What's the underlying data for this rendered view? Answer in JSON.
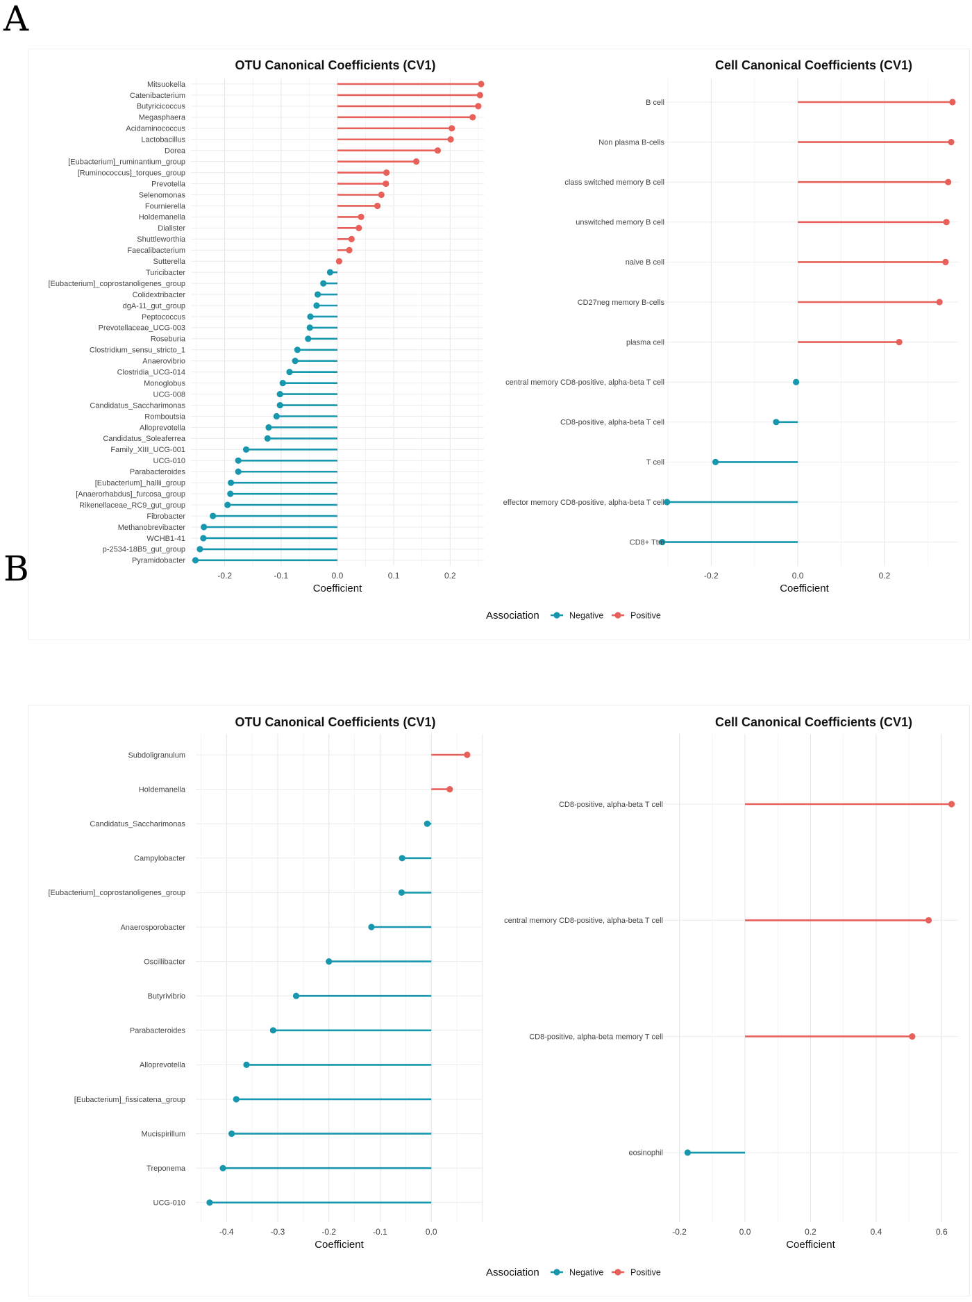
{
  "panels": [
    {
      "label": "A",
      "legend": {
        "title": "Association",
        "items": [
          {
            "label": "Negative",
            "color": "#1797AE"
          },
          {
            "label": "Positive",
            "color": "#E8605A"
          }
        ]
      },
      "charts": [
        {
          "type": "lollipop",
          "title": "OTU Canonical Coefficients (CV1)",
          "xlabel": "Coefficient",
          "xlim": [
            -0.26,
            0.26
          ],
          "xticks": [
            -0.2,
            -0.1,
            0.0,
            0.1,
            0.2
          ],
          "tick_labels": [
            "-0.2",
            "-0.1",
            "0.0",
            "0.1",
            "0.2"
          ],
          "categories": [
            "Mitsuokella",
            "Catenibacterium",
            "Butyricicoccus",
            "Megasphaera",
            "Acidaminococcus",
            "Lactobacillus",
            "Dorea",
            "[Eubacterium]_ruminantium_group",
            "[Ruminococcus]_torques_group",
            "Prevotella",
            "Selenomonas",
            "Fournierella",
            "Holdemanella",
            "Dialister",
            "Shuttleworthia",
            "Faecalibacterium",
            "Sutterella",
            "Turicibacter",
            "[Eubacterium]_coprostanoligenes_group",
            "Colidextribacter",
            "dgA-11_gut_group",
            "Peptococcus",
            "Prevotellaceae_UCG-003",
            "Roseburia",
            "Clostridium_sensu_stricto_1",
            "Anaerovibrio",
            "Clostridia_UCG-014",
            "Monoglobus",
            "UCG-008",
            "Candidatus_Saccharimonas",
            "Romboutsia",
            "Alloprevotella",
            "Candidatus_Soleaferrea",
            "Family_XIII_UCG-001",
            "UCG-010",
            "Parabacteroides",
            "[Eubacterium]_hallii_group",
            "[Anaerorhabdus]_furcosa_group",
            "Rikenellaceae_RC9_gut_group",
            "Fibrobacter",
            "Methanobrevibacter",
            "WCHB1-41",
            "p-2534-18B5_gut_group",
            "Pyramidobacter"
          ],
          "values": [
            0.255,
            0.253,
            0.25,
            0.24,
            0.203,
            0.201,
            0.178,
            0.14,
            0.087,
            0.086,
            0.078,
            0.071,
            0.042,
            0.038,
            0.025,
            0.021,
            0.003,
            -0.013,
            -0.025,
            -0.035,
            -0.037,
            -0.048,
            -0.049,
            -0.052,
            -0.071,
            -0.075,
            -0.085,
            -0.097,
            -0.102,
            -0.102,
            -0.108,
            -0.122,
            -0.124,
            -0.162,
            -0.176,
            -0.176,
            -0.189,
            -0.19,
            -0.195,
            -0.221,
            -0.237,
            -0.238,
            -0.244,
            -0.252
          ]
        },
        {
          "type": "lollipop",
          "title": "Cell Canonical Coefficients (CV1)",
          "xlabel": "Coefficient",
          "xlim": [
            -0.34,
            0.37
          ],
          "xticks": [
            -0.2,
            0.0,
            0.2
          ],
          "tick_labels": [
            "-0.2",
            "0.0",
            "0.2"
          ],
          "categories": [
            "B cell",
            "Non plasma B-cells",
            "class switched memory B cell",
            "unswitched memory B cell",
            "naive B cell",
            "CD27neg memory B-cells",
            "plasma cell",
            "central memory CD8-positive, alpha-beta T cell",
            "CD8-positive, alpha-beta T cell",
            "T cell",
            "effector memory CD8-positive, alpha-beta T cell",
            "CD8+ Ttm"
          ],
          "values": [
            0.357,
            0.354,
            0.347,
            0.343,
            0.341,
            0.327,
            0.234,
            -0.004,
            -0.05,
            -0.19,
            -0.302,
            -0.313
          ]
        }
      ]
    },
    {
      "label": "B",
      "legend": {
        "title": "Association",
        "items": [
          {
            "label": "Negative",
            "color": "#1797AE"
          },
          {
            "label": "Positive",
            "color": "#E8605A"
          }
        ]
      },
      "charts": [
        {
          "type": "lollipop",
          "title": "OTU Canonical Coefficients (CV1)",
          "xlabel": "Coefficient",
          "xlim": [
            -0.46,
            0.1
          ],
          "xticks": [
            -0.4,
            -0.3,
            -0.2,
            -0.1,
            0.0
          ],
          "tick_labels": [
            "-0.4",
            "-0.3",
            "-0.2",
            "-0.1",
            "0.0"
          ],
          "categories": [
            "Subdoligranulum",
            "Holdemanella",
            "Candidatus_Saccharimonas",
            "Campylobacter",
            "[Eubacterium]_coprostanoligenes_group",
            "Anaerosporobacter",
            "Oscillibacter",
            "Butyrivibrio",
            "Parabacteroides",
            "Alloprevotella",
            "[Eubacterium]_fissicatena_group",
            "Mucispirillum",
            "Treponema",
            "UCG-010"
          ],
          "values": [
            0.07,
            0.036,
            -0.008,
            -0.057,
            -0.058,
            -0.117,
            -0.2,
            -0.264,
            -0.309,
            -0.361,
            -0.381,
            -0.39,
            -0.407,
            -0.433
          ]
        },
        {
          "type": "lollipop",
          "title": "Cell Canonical Coefficients (CV1)",
          "xlabel": "Coefficient",
          "xlim": [
            -0.25,
            0.65
          ],
          "xticks": [
            -0.2,
            0.0,
            0.2,
            0.4,
            0.6
          ],
          "tick_labels": [
            "-0.2",
            "0.0",
            "0.2",
            "0.4",
            "0.6"
          ],
          "categories": [
            "CD8-positive, alpha-beta T cell",
            "central memory CD8-positive, alpha-beta T cell",
            "CD8-positive, alpha-beta memory T cell",
            "eosinophil"
          ],
          "values": [
            0.63,
            0.56,
            0.51,
            -0.175
          ]
        }
      ]
    }
  ]
}
